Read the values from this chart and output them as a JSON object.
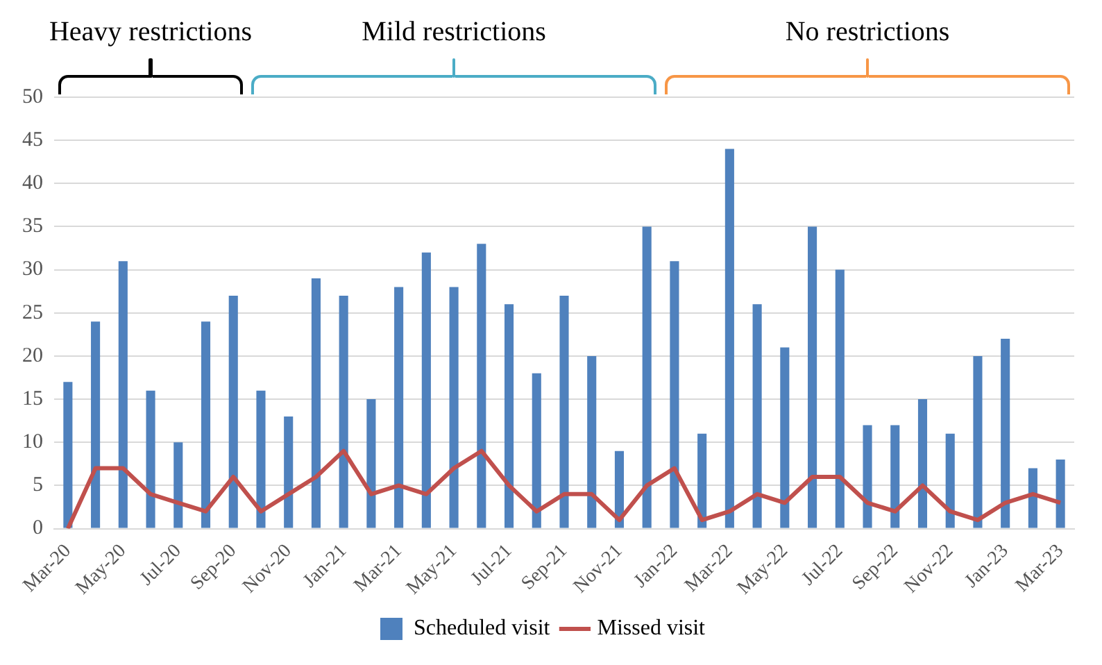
{
  "chart_data": {
    "type": "bar",
    "categories": [
      "Mar-20",
      null,
      "May-20",
      null,
      "Jul-20",
      null,
      "Sep-20",
      null,
      "Nov-20",
      null,
      "Jan-21",
      null,
      "Mar-21",
      null,
      "May-21",
      null,
      "Jul-21",
      null,
      "Sep-21",
      null,
      "Nov-21",
      null,
      "Jan-22",
      null,
      "Mar-22",
      null,
      "May-22",
      null,
      "Jul-22",
      null,
      "Sep-22",
      null,
      "Nov-22",
      null,
      "Jan-23",
      null,
      "Mar-23"
    ],
    "series": [
      {
        "name": "Scheduled visit",
        "color": "#4f81bd",
        "values": [
          17,
          24,
          31,
          16,
          10,
          24,
          27,
          16,
          13,
          29,
          27,
          15,
          28,
          32,
          28,
          33,
          26,
          18,
          27,
          20,
          9,
          35,
          31,
          11,
          44,
          26,
          21,
          35,
          30,
          12,
          12,
          15,
          11,
          20,
          22,
          7,
          8
        ]
      },
      {
        "name": "Missed visit",
        "type": "line",
        "color": "#c0504d",
        "values": [
          0,
          7,
          7,
          4,
          3,
          2,
          6,
          2,
          4,
          6,
          9,
          4,
          5,
          4,
          7,
          9,
          5,
          2,
          4,
          4,
          1,
          5,
          7,
          1,
          2,
          4,
          3,
          6,
          6,
          3,
          2,
          5,
          2,
          1,
          3,
          4,
          3
        ]
      }
    ],
    "ylim": [
      0,
      50
    ],
    "yticks": [
      0,
      5,
      10,
      15,
      20,
      25,
      30,
      35,
      40,
      45,
      50
    ],
    "grid": "y",
    "legend": "bottom",
    "marker": "none",
    "annotations": [
      "Heavy restrictions",
      "Mild restrictions",
      "No restrictions"
    ]
  }
}
